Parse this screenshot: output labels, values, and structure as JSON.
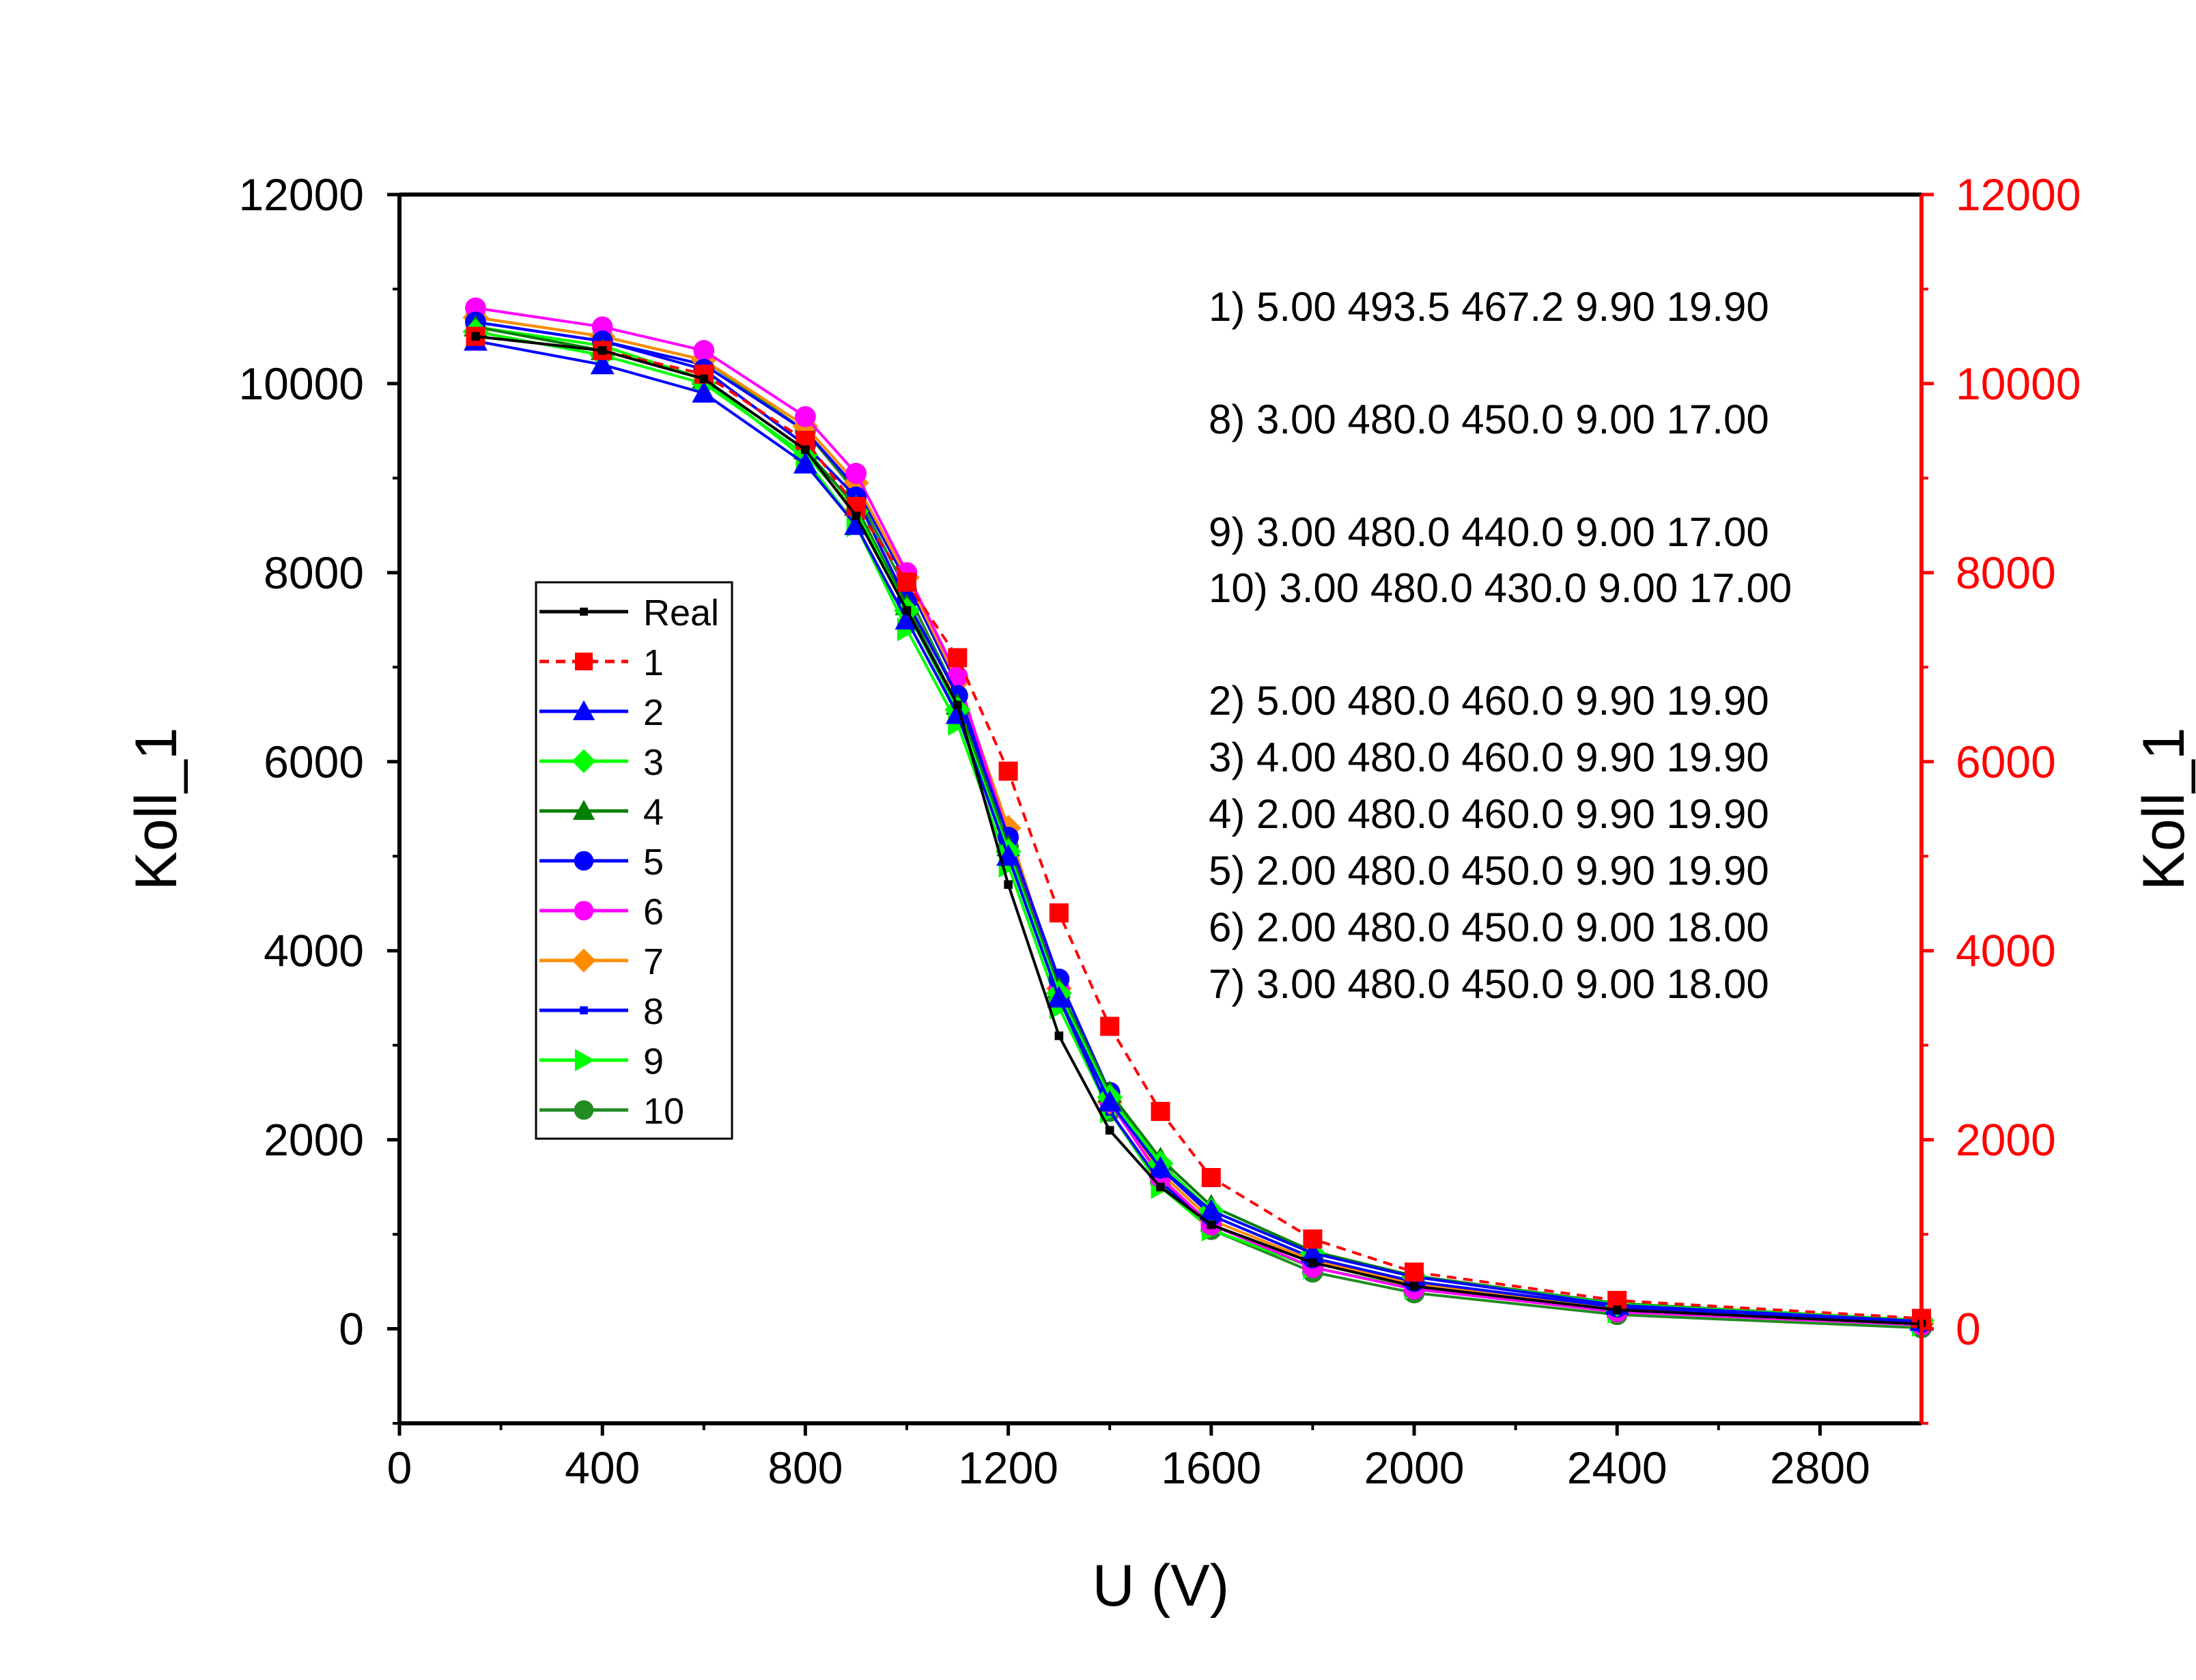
{
  "chart_data": {
    "type": "line",
    "xlabel": "U (V)",
    "ylabel": "Koll_1",
    "ylabel_right": "Koll_1",
    "xlim": [
      0,
      3000
    ],
    "ylim": [
      -1000,
      12000
    ],
    "x_ticks": [
      "0",
      "400",
      "800",
      "1200",
      "1600",
      "2000",
      "2400",
      "2800"
    ],
    "y_ticks": [
      "0",
      "2000",
      "4000",
      "6000",
      "8000",
      "10000",
      "12000"
    ],
    "y_ticks_right": [
      "0",
      "2000",
      "4000",
      "6000",
      "8000",
      "10000",
      "12000"
    ],
    "legend_position": "left-middle",
    "grid": false,
    "right_axis_color": "#ff0000",
    "annotations": [
      "1) 5.00 493.5 467.2 9.90 19.90",
      "8) 3.00 480.0 450.0 9.00 17.00",
      "9) 3.00 480.0 440.0 9.00 17.00",
      "10) 3.00 480.0 430.0 9.00 17.00",
      "2) 5.00 480.0 460.0 9.90 19.90",
      "3) 4.00 480.0 460.0 9.90 19.90",
      "4) 2.00 480.0 460.0 9.90 19.90",
      "5) 2.00 480.0 450.0 9.90 19.90",
      "6) 2.00 480.0 450.0 9.00 18.00",
      "7) 3.00 480.0 450.0 9.00 18.00"
    ],
    "series": [
      {
        "name": "Real",
        "color": "#000000",
        "marker": "square-small",
        "dashed": false,
        "x": [
          150,
          400,
          600,
          800,
          900,
          1000,
          1100,
          1200,
          1300,
          1400,
          1500,
          1600,
          1800,
          2000,
          2400,
          3000
        ],
        "y": [
          10500,
          10350,
          10050,
          9300,
          8600,
          7600,
          6600,
          4700,
          3100,
          2100,
          1500,
          1100,
          700,
          450,
          200,
          50
        ]
      },
      {
        "name": "1",
        "color": "#ff0000",
        "marker": "square",
        "dashed": true,
        "x": [
          150,
          400,
          600,
          800,
          900,
          1000,
          1100,
          1200,
          1300,
          1400,
          1500,
          1600,
          1800,
          2000,
          2400,
          3000
        ],
        "y": [
          10500,
          10350,
          10100,
          9400,
          8700,
          7900,
          7100,
          5900,
          4400,
          3200,
          2300,
          1600,
          950,
          600,
          300,
          110
        ]
      },
      {
        "name": "2",
        "color": "#0000ff",
        "marker": "triangle-up",
        "dashed": false,
        "x": [
          150,
          400,
          600,
          800,
          900,
          1000,
          1100,
          1200,
          1300,
          1400,
          1500,
          1600,
          1800,
          2000,
          2400,
          3000
        ],
        "y": [
          10450,
          10200,
          9900,
          9150,
          8500,
          7500,
          6500,
          5000,
          3500,
          2400,
          1700,
          1250,
          800,
          550,
          250,
          80
        ]
      },
      {
        "name": "3",
        "color": "#00ff00",
        "marker": "diamond",
        "dashed": false,
        "x": [
          150,
          400,
          600,
          800,
          900,
          1000,
          1100,
          1200,
          1300,
          1400,
          1500,
          1600,
          1800,
          2000,
          2400,
          3000
        ],
        "y": [
          10550,
          10300,
          10000,
          9250,
          8650,
          7600,
          6550,
          5050,
          3550,
          2450,
          1750,
          1250,
          800,
          550,
          260,
          90
        ]
      },
      {
        "name": "4",
        "color": "#008000",
        "marker": "triangle-up",
        "dashed": false,
        "x": [
          150,
          400,
          600,
          800,
          900,
          1000,
          1100,
          1200,
          1300,
          1400,
          1500,
          1600,
          1800,
          2000,
          2400,
          3000
        ],
        "y": [
          10600,
          10350,
          10050,
          9300,
          8700,
          7650,
          6600,
          5100,
          3600,
          2500,
          1800,
          1300,
          820,
          560,
          270,
          90
        ]
      },
      {
        "name": "5",
        "color": "#0000ff",
        "marker": "circle",
        "dashed": false,
        "x": [
          150,
          400,
          600,
          800,
          900,
          1000,
          1100,
          1200,
          1300,
          1400,
          1500,
          1600,
          1800,
          2000,
          2400,
          3000
        ],
        "y": [
          10650,
          10450,
          10150,
          9350,
          8800,
          7700,
          6700,
          5200,
          3700,
          2500,
          1700,
          1200,
          750,
          500,
          230,
          70
        ]
      },
      {
        "name": "6",
        "color": "#ff00ff",
        "marker": "circle",
        "dashed": false,
        "x": [
          150,
          400,
          600,
          800,
          900,
          1000,
          1100,
          1200,
          1300,
          1400,
          1500,
          1600,
          1800,
          2000,
          2400,
          3000
        ],
        "y": [
          10800,
          10600,
          10350,
          9650,
          9050,
          8000,
          6900,
          5200,
          3600,
          2400,
          1600,
          1100,
          650,
          420,
          180,
          40
        ]
      },
      {
        "name": "7",
        "color": "#ff8c00",
        "marker": "diamond",
        "dashed": false,
        "x": [
          150,
          400,
          600,
          800,
          900,
          1000,
          1100,
          1200,
          1300,
          1400,
          1500,
          1600,
          1800,
          2000,
          2400,
          3000
        ],
        "y": [
          10700,
          10500,
          10250,
          9550,
          8950,
          7950,
          6850,
          5300,
          3600,
          2400,
          1650,
          1150,
          720,
          480,
          220,
          60
        ]
      },
      {
        "name": "8",
        "color": "#0000ff",
        "marker": "square-small",
        "dashed": false,
        "x": [
          150,
          400,
          600,
          800,
          900,
          1000,
          1100,
          1200,
          1300,
          1400,
          1500,
          1600,
          1800,
          2000,
          2400,
          3000
        ],
        "y": [
          10650,
          10450,
          10200,
          9500,
          8900,
          7900,
          6800,
          5200,
          3500,
          2300,
          1550,
          1100,
          700,
          460,
          200,
          50
        ]
      },
      {
        "name": "9",
        "color": "#00ff00",
        "marker": "triangle-right",
        "dashed": false,
        "x": [
          150,
          400,
          600,
          800,
          900,
          1000,
          1100,
          1200,
          1300,
          1400,
          1500,
          1600,
          1800,
          2000,
          2400,
          3000
        ],
        "y": [
          10600,
          10400,
          10050,
          9200,
          8500,
          7400,
          6400,
          4900,
          3400,
          2300,
          1500,
          1050,
          650,
          430,
          180,
          40
        ]
      },
      {
        "name": "10",
        "color": "#228b22",
        "marker": "circle",
        "dashed": false,
        "x": [
          150,
          400,
          600,
          800,
          900,
          1000,
          1100,
          1200,
          1300,
          1400,
          1500,
          1600,
          1800,
          2000,
          2400,
          3000
        ],
        "y": [
          10700,
          10500,
          10250,
          9500,
          8850,
          7800,
          6700,
          5100,
          3500,
          2300,
          1550,
          1050,
          600,
          380,
          150,
          10
        ]
      }
    ]
  }
}
